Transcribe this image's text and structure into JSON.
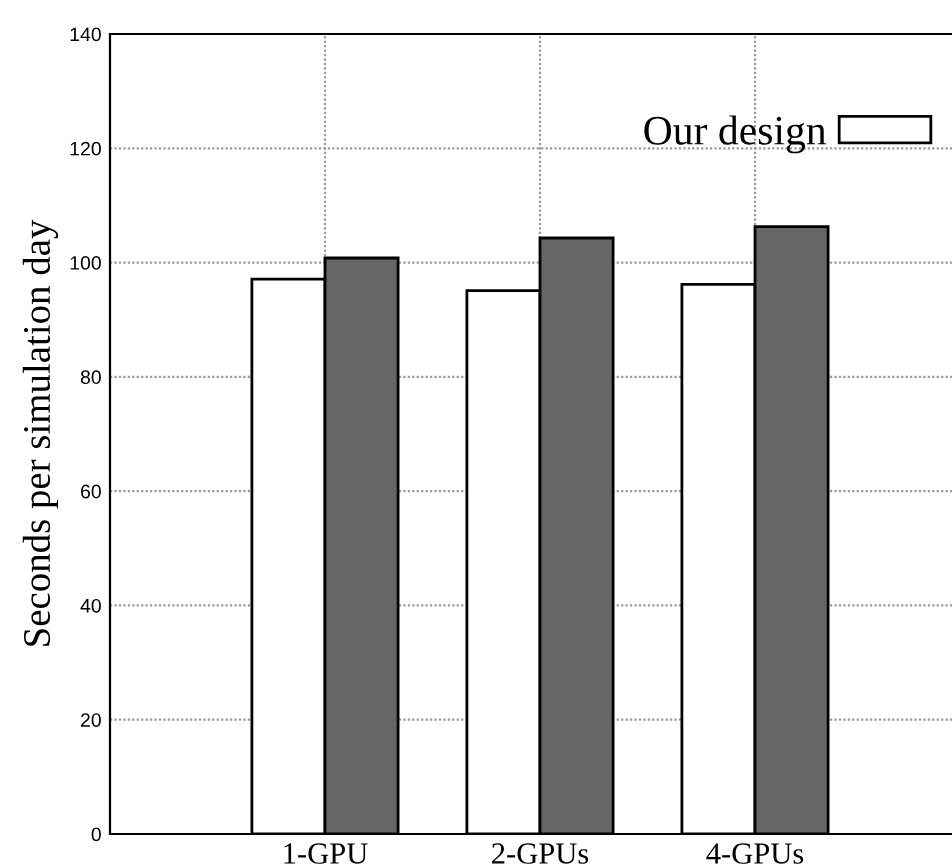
{
  "chart_data": {
    "type": "bar",
    "categories": [
      "1-GPU",
      "2-GPUs",
      "4-GPUs"
    ],
    "series": [
      {
        "name": "Our design",
        "color": "#ffffff",
        "values": [
          97.1,
          95.1,
          96.2
        ]
      },
      {
        "color": "#666666",
        "values": [
          100.8,
          104.3,
          106.3
        ]
      }
    ],
    "ylabel": "Seconds per simulation day",
    "ylim": [
      0,
      140
    ],
    "yticks": [
      0,
      20,
      40,
      60,
      80,
      100,
      120,
      140
    ],
    "grid": true,
    "legend": "top right"
  }
}
